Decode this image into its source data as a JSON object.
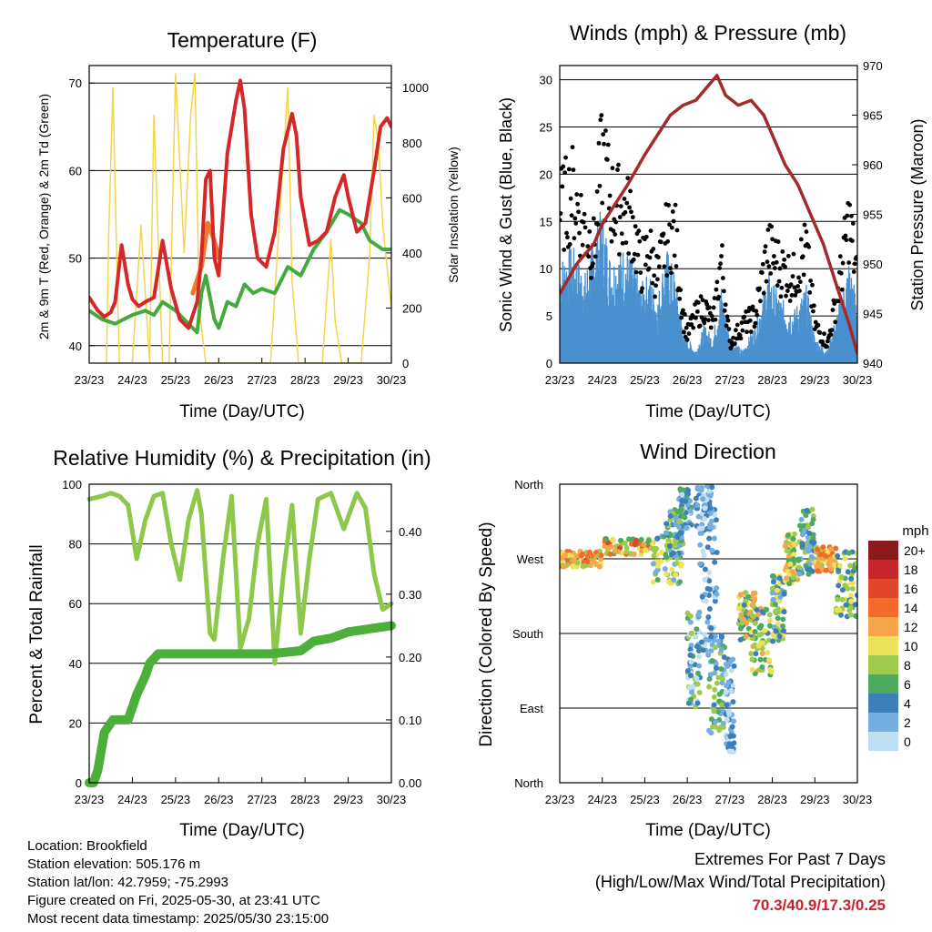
{
  "panels": {
    "temperature": {
      "title": "Temperature (F)",
      "ylabel_left": "2m & 9m T (Red, Orange) & 2m Td (Green)",
      "ylabel_right": "Solar Insolation (Yellow)",
      "xlabel": "Time (Day/UTC)"
    },
    "winds": {
      "title": "Winds (mph) & Pressure (mb)",
      "ylabel_left": "Sonic Wind & Gust (Blue, Black)",
      "ylabel_right": "Station Pressure (Maroon)",
      "xlabel": "Time (Day/UTC)"
    },
    "humidity": {
      "title": "Relative Humidity (%) & Precipitation (in)",
      "ylabel_left": "Percent & Total Rainfall",
      "xlabel": "Time (Day/UTC)"
    },
    "direction": {
      "title": "Wind Direction",
      "ylabel_left": "Direction (Colored By Speed)",
      "xlabel": "Time (Day/UTC)",
      "legend_title": "mph"
    }
  },
  "chart_data": [
    {
      "type": "line",
      "title": "Temperature (F)",
      "xlabel": "Time (Day/UTC)",
      "ylabel": "2m & 9m T (Red, Orange) & 2m Td (Green)",
      "ylabel_right": "Solar Insolation (Yellow)",
      "x_ticks": [
        "23/23",
        "24/23",
        "25/23",
        "26/23",
        "27/23",
        "28/23",
        "29/23",
        "30/23"
      ],
      "y_ticks": [
        40,
        50,
        60,
        70
      ],
      "ylim": [
        38,
        72
      ],
      "y2_ticks": [
        0,
        200,
        400,
        600,
        800,
        1000
      ],
      "y2lim": [
        0,
        1080
      ],
      "grid": true,
      "series": [
        {
          "color": "#d62728",
          "x": [
            0,
            0.2,
            0.35,
            0.5,
            0.6,
            0.75,
            0.9,
            1.0,
            1.15,
            1.3,
            1.5,
            1.7,
            1.9,
            2.1,
            2.3,
            2.5,
            2.6,
            2.7,
            2.8,
            2.9,
            3.0,
            3.2,
            3.4,
            3.5,
            3.6,
            3.75,
            3.9,
            4.1,
            4.3,
            4.5,
            4.7,
            4.8,
            4.9,
            5.1,
            5.3,
            5.5,
            5.7,
            5.9,
            6.0,
            6.2,
            6.4,
            6.6,
            6.75,
            6.9,
            7.0
          ],
          "values": [
            45.5,
            44,
            43.3,
            43.8,
            45,
            51.5,
            47,
            45.3,
            44.5,
            45,
            45.5,
            52,
            46.5,
            43,
            42,
            45,
            50,
            59,
            60,
            50,
            48,
            62,
            68,
            70.3,
            67,
            55,
            50,
            49,
            53,
            62.5,
            66.5,
            64,
            57,
            51.5,
            52,
            53,
            57,
            59.5,
            57,
            53,
            54,
            60,
            65,
            66,
            65
          ]
        },
        {
          "color": "#f4782c",
          "x": [
            2.4,
            2.6,
            2.75,
            2.9,
            3.0
          ],
          "values": [
            46,
            49,
            54,
            52,
            50
          ]
        },
        {
          "color": "#43aa3e",
          "x": [
            0,
            0.3,
            0.6,
            0.8,
            1.0,
            1.3,
            1.5,
            1.7,
            2.0,
            2.3,
            2.5,
            2.6,
            2.7,
            2.9,
            3.0,
            3.2,
            3.4,
            3.6,
            3.8,
            4.0,
            4.3,
            4.6,
            4.9,
            5.0,
            5.2,
            5.5,
            5.8,
            6.0,
            6.3,
            6.5,
            6.8,
            7.0
          ],
          "values": [
            44,
            43,
            42.5,
            43,
            43.5,
            44,
            43.5,
            45,
            44,
            42.5,
            41.5,
            46,
            48,
            43,
            42,
            45,
            44.5,
            47,
            46,
            46.5,
            46,
            49,
            48,
            49,
            51,
            53,
            55.5,
            55,
            54,
            52,
            51,
            51
          ]
        },
        {
          "color": "#f4d44c",
          "x": [
            0.4,
            0.45,
            0.55,
            0.65,
            0.7,
            1.0,
            1.2,
            1.4,
            1.5,
            1.7,
            1.85,
            2.0,
            2.2,
            2.35,
            2.45,
            2.55,
            2.7,
            2.85,
            3.0,
            3.2,
            3.5,
            3.8,
            4.2,
            4.6,
            4.7,
            4.75,
            4.85,
            5.0,
            5.4,
            5.6,
            5.7,
            5.85,
            6.0,
            6.3,
            6.5,
            6.6,
            6.7,
            6.8,
            7.0
          ],
          "values": [
            0,
            450,
            1000,
            300,
            0,
            0,
            500,
            0,
            900,
            0,
            0,
            1050,
            400,
            900,
            1050,
            200,
            0,
            0,
            0,
            0,
            0,
            0,
            0,
            1000,
            300,
            200,
            0,
            0,
            0,
            450,
            150,
            0,
            0,
            0,
            400,
            900,
            800,
            500,
            200
          ]
        }
      ]
    },
    {
      "type": "scatter",
      "title": "Winds (mph) & Pressure (mb)",
      "xlabel": "Time (Day/UTC)",
      "ylabel": "Sonic Wind & Gust (Blue, Black)",
      "ylabel_right": "Station Pressure (Maroon)",
      "x_ticks": [
        "23/23",
        "24/23",
        "25/23",
        "26/23",
        "27/23",
        "28/23",
        "29/23",
        "30/23"
      ],
      "y_ticks": [
        0,
        5,
        10,
        15,
        20,
        25,
        30
      ],
      "ylim": [
        0,
        31.5
      ],
      "y2_ticks": [
        940,
        945,
        950,
        955,
        960,
        965,
        970
      ],
      "y2lim": [
        940,
        970
      ],
      "grid": true,
      "series": [
        {
          "name": "",
          "color": "#4a90cf",
          "x": [
            0,
            0.3,
            0.6,
            0.8,
            1.0,
            1.2,
            1.5,
            1.7,
            1.9,
            2.1,
            2.3,
            2.5,
            2.7,
            2.9,
            3.0,
            3.2,
            3.4,
            3.6,
            3.8,
            4.0,
            4.3,
            4.6,
            4.9,
            5.2,
            5.5,
            5.8,
            6.0,
            6.3,
            6.6,
            6.8,
            7.0
          ],
          "values": [
            8,
            9,
            7,
            10,
            12,
            8,
            9,
            8,
            6,
            7,
            5,
            9,
            7,
            3,
            2,
            1,
            3,
            2,
            6,
            2,
            1,
            3,
            7,
            5,
            4,
            6,
            2,
            1,
            5,
            8,
            5
          ]
        },
        {
          "name": "",
          "color": "#000000",
          "x": [
            0,
            0.3,
            0.6,
            0.8,
            1.0,
            1.2,
            1.5,
            1.7,
            1.9,
            2.1,
            2.3,
            2.5,
            2.7,
            2.9,
            3.0,
            3.2,
            3.4,
            3.6,
            3.8,
            4.0,
            4.3,
            4.6,
            4.9,
            5.2,
            5.5,
            5.8,
            6.0,
            6.3,
            6.6,
            6.8,
            7.0
          ],
          "values": [
            16,
            18,
            14,
            12,
            22,
            17,
            16,
            15,
            10,
            12,
            9,
            13,
            14,
            5,
            3,
            5,
            6,
            4,
            11,
            2,
            4,
            5,
            12,
            10,
            9,
            12,
            4,
            2,
            9,
            15,
            9
          ]
        },
        {
          "name": "",
          "color": "#a32a2a",
          "type": "line",
          "axis": "right",
          "x": [
            0,
            0.4,
            0.8,
            1.0,
            1.3,
            1.6,
            2.0,
            2.3,
            2.6,
            2.9,
            3.2,
            3.5,
            3.7,
            3.9,
            4.2,
            4.5,
            4.8,
            5.0,
            5.3,
            5.6,
            5.9,
            6.2,
            6.5,
            6.8,
            7.0
          ],
          "values": [
            947,
            950,
            952,
            954,
            956,
            958,
            961,
            963,
            965,
            966,
            966.5,
            968,
            969,
            967,
            966,
            966.5,
            965,
            963,
            960,
            958,
            955,
            952,
            948,
            944,
            941
          ]
        }
      ]
    },
    {
      "type": "line",
      "title": "Relative Humidity (%) & Precipitation (in)",
      "xlabel": "Time (Day/UTC)",
      "ylabel": "Percent & Total Rainfall",
      "x_ticks": [
        "23/23",
        "24/23",
        "25/23",
        "26/23",
        "27/23",
        "28/23",
        "29/23",
        "30/23"
      ],
      "y_ticks": [
        0,
        20,
        40,
        60,
        80,
        100
      ],
      "ylim": [
        0,
        100
      ],
      "y2_ticks": [
        "0.00",
        "0.10",
        "0.20",
        "0.30",
        "0.40"
      ],
      "y2lim": [
        0,
        0.475
      ],
      "grid": true,
      "series": [
        {
          "color": "#8dc84a",
          "x": [
            0,
            0.3,
            0.5,
            0.7,
            0.9,
            1.1,
            1.3,
            1.5,
            1.7,
            1.9,
            2.1,
            2.3,
            2.5,
            2.6,
            2.8,
            2.9,
            3.1,
            3.3,
            3.5,
            3.7,
            3.9,
            4.1,
            4.3,
            4.5,
            4.7,
            4.9,
            5.1,
            5.3,
            5.6,
            5.9,
            6.2,
            6.4,
            6.6,
            6.8,
            7.0
          ],
          "values": [
            95,
            96,
            97,
            96,
            93,
            75,
            88,
            96,
            97,
            80,
            68,
            88,
            98,
            90,
            50,
            48,
            75,
            96,
            45,
            55,
            80,
            95,
            40,
            70,
            93,
            50,
            75,
            95,
            97,
            85,
            97,
            92,
            70,
            58,
            60
          ]
        },
        {
          "color": "#4caf39",
          "x": [
            0,
            0.1,
            0.2,
            0.35,
            0.55,
            0.9,
            1.1,
            1.3,
            1.4,
            1.6,
            1.9,
            2.2,
            2.6,
            3.0,
            3.6,
            4.2,
            4.9,
            5.2,
            5.6,
            6.0,
            7.0
          ],
          "values": [
            0,
            0,
            0.02,
            0.08,
            0.1,
            0.1,
            0.14,
            0.17,
            0.19,
            0.205,
            0.205,
            0.205,
            0.205,
            0.205,
            0.205,
            0.205,
            0.21,
            0.225,
            0.23,
            0.24,
            0.25
          ]
        }
      ]
    },
    {
      "type": "scatter",
      "title": "Wind Direction",
      "xlabel": "Time (Day/UTC)",
      "ylabel": "Direction (Colored By Speed)",
      "x_ticks": [
        "23/23",
        "24/23",
        "25/23",
        "26/23",
        "27/23",
        "28/23",
        "29/23",
        "30/23"
      ],
      "y_ticks": [
        "North",
        "East",
        "South",
        "West",
        "North"
      ],
      "ylim": [
        0,
        360
      ],
      "grid": true,
      "legend": {
        "title": "mph",
        "labels": [
          "20+",
          "18",
          "16",
          "14",
          "12",
          "10",
          "8",
          "6",
          "4",
          "2",
          "0"
        ],
        "colors": [
          "#8b1a1a",
          "#c4262a",
          "#e0462a",
          "#f26b2a",
          "#f6a648",
          "#ece35a",
          "#9ecb4f",
          "#4daa5f",
          "#3d7fb8",
          "#74aee0",
          "#bfe0f4"
        ]
      }
    }
  ],
  "info": {
    "location": "Location: Brookfield",
    "elevation": "Station elevation: 505.176 m",
    "latlon": "Station lat/lon: 42.7959; -75.2993",
    "created": "Figure created on Fri, 2025-05-30, at 23:41 UTC",
    "recent": "Most recent data timestamp: 2025/05/30 23:15:00"
  },
  "extremes": {
    "line1": "Extremes For Past 7 Days",
    "line2": "(High/Low/Max Wind/Total Precipitation)",
    "values": "70.3/40.9/17.3/0.25"
  }
}
